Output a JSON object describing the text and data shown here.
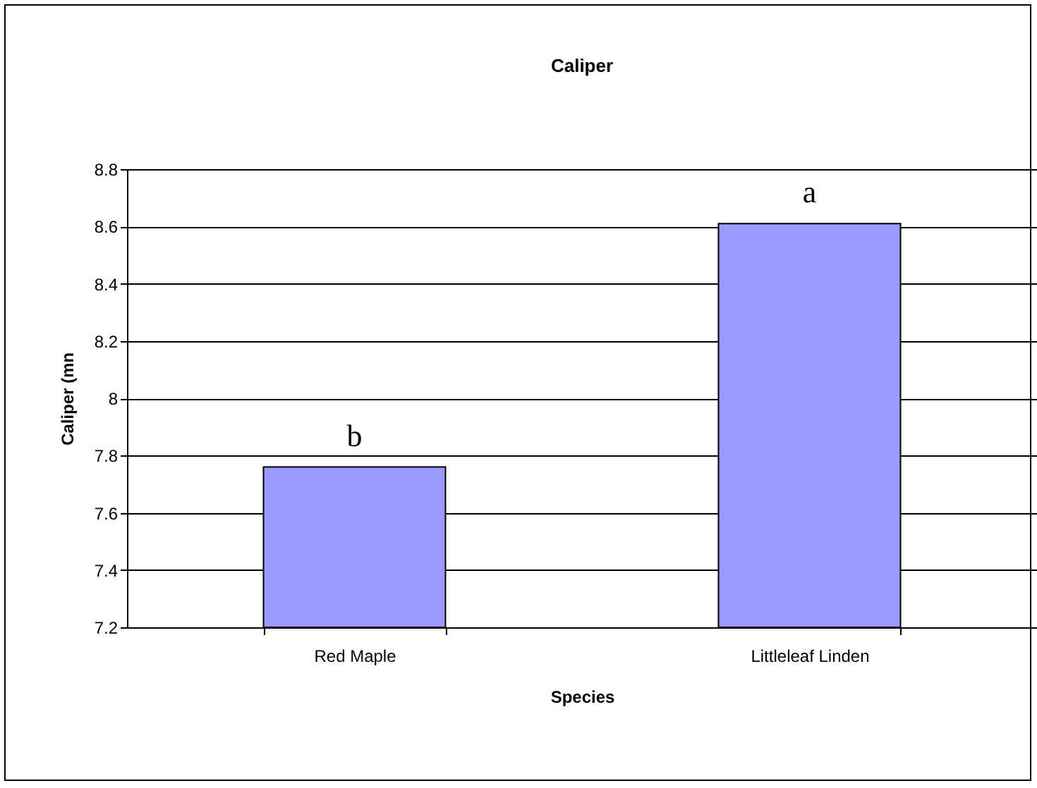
{
  "chart_data": {
    "type": "bar",
    "title": "Caliper",
    "xlabel": "Species",
    "ylabel": "Caliper (mn",
    "categories": [
      "Red Maple",
      "Littleleaf Linden"
    ],
    "series": [
      {
        "color": "#9999ff",
        "values": [
          7.76,
          8.61
        ]
      }
    ],
    "ylim": [
      7.2,
      8.8
    ],
    "yticks": [
      7.2,
      7.4,
      7.6,
      7.8,
      8,
      8.2,
      8.4,
      8.6,
      8.8
    ],
    "grid": "y",
    "annotations": [
      {
        "text": "b",
        "x": "Red Maple",
        "y": 7.76
      },
      {
        "text": "a",
        "x": "Littleleaf Linden",
        "y": 8.61
      }
    ]
  }
}
